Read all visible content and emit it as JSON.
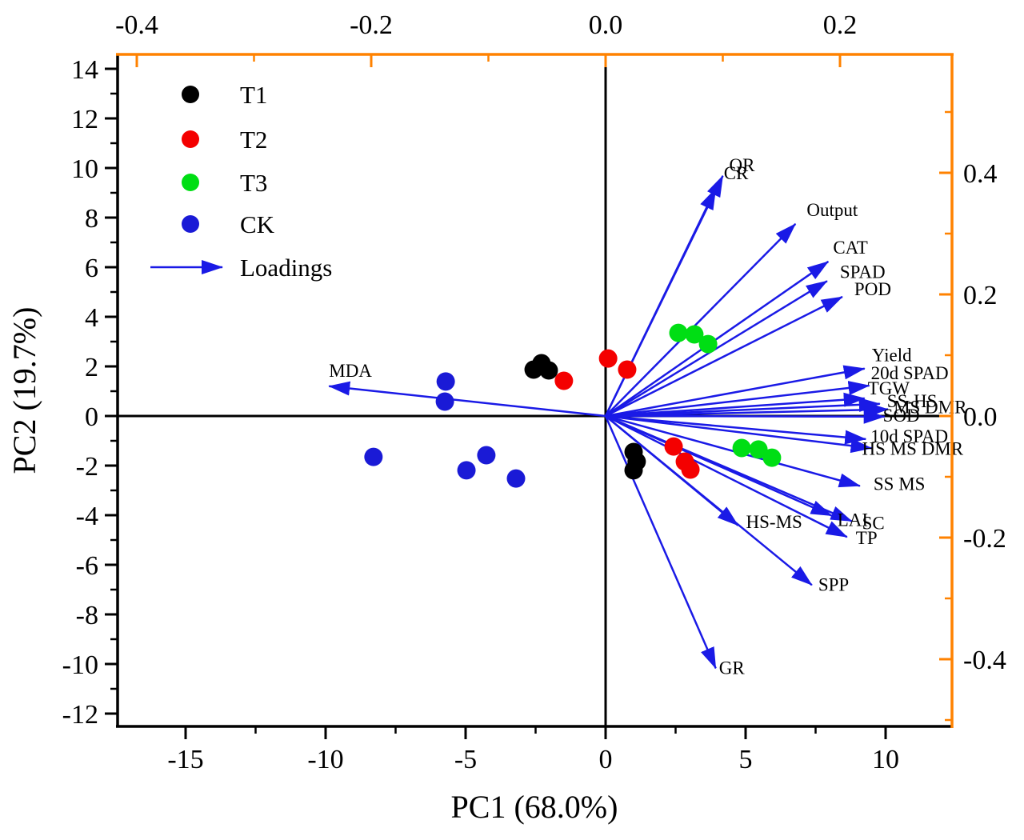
{
  "figure": {
    "background": "#ffffff"
  },
  "chart_data": {
    "type": "scatter",
    "subtype": "pca-biplot",
    "title": "",
    "xlabel": "PC1 (68.0%)",
    "ylabel": "PC2 (19.7%)",
    "grid": false,
    "legend_position": "top-left-inside",
    "axes": {
      "bottom": {
        "color": "#000000",
        "major_ticks": [
          -15,
          -10,
          -5,
          0,
          5,
          10
        ],
        "minor_ticks": [
          -12.5,
          -7.5,
          -2.5,
          2.5,
          7.5
        ],
        "range": [
          -17.4,
          12.4
        ]
      },
      "left": {
        "color": "#000000",
        "major_ticks": [
          14,
          12,
          10,
          8,
          6,
          4,
          2,
          0,
          -2,
          -4,
          -6,
          -8,
          -10,
          -12
        ],
        "minor_ticks": [
          13,
          11,
          9,
          7,
          5,
          3,
          1,
          -1,
          -3,
          -5,
          -7,
          -9,
          -11
        ],
        "range": [
          -12.5,
          14.6
        ]
      },
      "top": {
        "color": "#FF8200",
        "major_ticks": [
          -0.4,
          -0.2,
          0.0,
          0.2
        ],
        "major_tick_labels": [
          "-0.4",
          "-0.2",
          "0.0",
          "0.2"
        ],
        "minor_ticks": [
          -0.3,
          -0.1,
          0.1
        ],
        "range": [
          -0.416,
          0.296
        ]
      },
      "right": {
        "color": "#FF8200",
        "major_ticks": [
          0.4,
          0.2,
          0.0,
          -0.2,
          -0.4
        ],
        "major_tick_labels": [
          "0.4",
          "0.2",
          "0.0",
          "-0.2",
          "-0.4"
        ],
        "minor_ticks": [
          0.5,
          0.3,
          0.1,
          -0.1,
          -0.3,
          -0.5
        ],
        "range": [
          -0.51,
          0.59
        ]
      }
    },
    "groups": [
      {
        "name": "T1",
        "color": "#000000",
        "points": [
          [
            -2.57,
            1.87
          ],
          [
            -2.29,
            2.13
          ],
          [
            -2.03,
            1.84
          ],
          [
            1.0,
            -1.45
          ],
          [
            1.11,
            -1.84
          ],
          [
            1.0,
            -2.19
          ]
        ]
      },
      {
        "name": "T2",
        "color": "#F40000",
        "points": [
          [
            -1.49,
            1.42
          ],
          [
            0.09,
            2.32
          ],
          [
            0.77,
            1.87
          ],
          [
            2.43,
            -1.23
          ],
          [
            2.83,
            -1.84
          ],
          [
            3.03,
            -2.16
          ]
        ]
      },
      {
        "name": "T3",
        "color": "#00DE14",
        "points": [
          [
            2.6,
            3.35
          ],
          [
            3.17,
            3.29
          ],
          [
            3.66,
            2.9
          ],
          [
            4.86,
            -1.29
          ],
          [
            5.46,
            -1.35
          ],
          [
            5.94,
            -1.68
          ]
        ]
      },
      {
        "name": "CK",
        "color": "#1A1AD6",
        "points": [
          [
            -5.71,
            1.39
          ],
          [
            -5.74,
            0.58
          ],
          [
            -8.29,
            -1.65
          ],
          [
            -4.97,
            -2.19
          ],
          [
            -4.26,
            -1.58
          ],
          [
            -3.2,
            -2.52
          ]
        ]
      }
    ],
    "loadings": {
      "color": "#1A1AE6",
      "arrows": [
        {
          "label": "QR",
          "x": 0.1,
          "y": 0.395
        },
        {
          "label": "CR",
          "x": 0.094,
          "y": 0.374
        },
        {
          "label": "Output",
          "x": 0.162,
          "y": 0.316
        },
        {
          "label": "CAT",
          "x": 0.19,
          "y": 0.254
        },
        {
          "label": "SPAD",
          "x": 0.189,
          "y": 0.222
        },
        {
          "label": "POD",
          "x": 0.202,
          "y": 0.196
        },
        {
          "label": "Yield",
          "x": 0.221,
          "y": 0.078
        },
        {
          "label": "20d SPAD",
          "x": 0.225,
          "y": 0.05
        },
        {
          "label": "TGW",
          "x": 0.221,
          "y": 0.029
        },
        {
          "label": "SS-HS",
          "x": 0.234,
          "y": 0.02
        },
        {
          "label": "MS DMR",
          "x": 0.241,
          "y": 0.011
        },
        {
          "label": "SOD",
          "x": 0.238,
          "y": -0.001
        },
        {
          "label": "10d SPAD",
          "x": 0.222,
          "y": -0.038
        },
        {
          "label": "HS MS DMR",
          "x": 0.227,
          "y": -0.053
        },
        {
          "label": "SS MS",
          "x": 0.217,
          "y": -0.115
        },
        {
          "label": "LAI",
          "x": 0.193,
          "y": -0.164
        },
        {
          "label": "SC",
          "x": 0.21,
          "y": -0.173
        },
        {
          "label": "TP",
          "x": 0.206,
          "y": -0.199
        },
        {
          "label": "HS-MS",
          "x": 0.113,
          "y": -0.18
        },
        {
          "label": "SPP",
          "x": 0.176,
          "y": -0.278
        },
        {
          "label": "GR",
          "x": 0.094,
          "y": -0.415
        },
        {
          "label": "MDA",
          "x": -0.236,
          "y": 0.049
        }
      ]
    },
    "legend": {
      "items": [
        {
          "label": "T1",
          "color": "#000000"
        },
        {
          "label": "T2",
          "color": "#F40000"
        },
        {
          "label": "T3",
          "color": "#00DE14"
        },
        {
          "label": "CK",
          "color": "#1A1AD6"
        }
      ],
      "arrow_label": "Loadings"
    }
  }
}
